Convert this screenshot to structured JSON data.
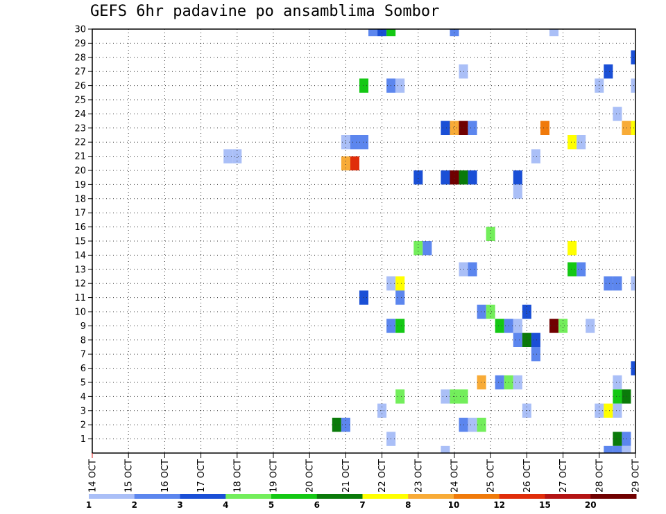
{
  "chart_data": {
    "type": "heatmap",
    "title": "GEFS 6hr padavine po ansamblima Sombor",
    "xlabel": "",
    "ylabel": "",
    "x_ticks": [
      "14 OCT",
      "15 OCT",
      "16 OCT",
      "17 OCT",
      "18 OCT",
      "19 OCT",
      "20 OCT",
      "21 OCT",
      "22 OCT",
      "23 OCT",
      "24 OCT",
      "25 OCT",
      "26 OCT",
      "27 OCT",
      "28 OCT",
      "29 OCT"
    ],
    "y_ticks": [
      "1",
      "2",
      "3",
      "4",
      "5",
      "6",
      "7",
      "8",
      "9",
      "10",
      "11",
      "12",
      "13",
      "14",
      "15",
      "16",
      "17",
      "18",
      "19",
      "20",
      "21",
      "22",
      "23",
      "24",
      "25",
      "26",
      "27",
      "28",
      "29",
      "30"
    ],
    "xlim": [
      0,
      15
    ],
    "ylim": [
      0,
      30
    ],
    "grid": true,
    "colorbar": {
      "labels": [
        "1",
        "2",
        "3",
        "4",
        "5",
        "6",
        "7",
        "8",
        "10",
        "12",
        "15",
        "20"
      ],
      "colors": [
        "#aabff7",
        "#5c86ee",
        "#1a4fd6",
        "#73ee5b",
        "#14c814",
        "#0a7a0a",
        "#ffff00",
        "#f8ab37",
        "#f07a0a",
        "#e02d0a",
        "#b41414",
        "#700000"
      ]
    },
    "cells": [
      {
        "x": 7.75,
        "y": 30,
        "v": 2
      },
      {
        "x": 8.0,
        "y": 30,
        "v": 3
      },
      {
        "x": 8.25,
        "y": 30,
        "v": 5
      },
      {
        "x": 10.0,
        "y": 30,
        "v": 2
      },
      {
        "x": 12.75,
        "y": 30,
        "v": 1
      },
      {
        "x": 15.0,
        "y": 28,
        "v": 3
      },
      {
        "x": 14.25,
        "y": 27,
        "v": 3
      },
      {
        "x": 10.25,
        "y": 27,
        "v": 1
      },
      {
        "x": 7.5,
        "y": 26,
        "v": 5
      },
      {
        "x": 8.25,
        "y": 26,
        "v": 2
      },
      {
        "x": 8.5,
        "y": 26,
        "v": 1
      },
      {
        "x": 14.0,
        "y": 26,
        "v": 1
      },
      {
        "x": 15.0,
        "y": 26,
        "v": 1
      },
      {
        "x": 14.5,
        "y": 24,
        "v": 1
      },
      {
        "x": 9.75,
        "y": 23,
        "v": 3
      },
      {
        "x": 10.0,
        "y": 23,
        "v": 8
      },
      {
        "x": 10.25,
        "y": 23,
        "v": 20
      },
      {
        "x": 10.5,
        "y": 23,
        "v": 2
      },
      {
        "x": 12.5,
        "y": 23,
        "v": 10
      },
      {
        "x": 14.75,
        "y": 23,
        "v": 8
      },
      {
        "x": 15.0,
        "y": 23,
        "v": 7
      },
      {
        "x": 7.0,
        "y": 22,
        "v": 1
      },
      {
        "x": 7.25,
        "y": 22,
        "v": 2
      },
      {
        "x": 7.5,
        "y": 22,
        "v": 2
      },
      {
        "x": 13.25,
        "y": 22,
        "v": 7
      },
      {
        "x": 13.5,
        "y": 22,
        "v": 1
      },
      {
        "x": 3.75,
        "y": 21,
        "v": 1
      },
      {
        "x": 4.0,
        "y": 21,
        "v": 1
      },
      {
        "x": 12.25,
        "y": 21,
        "v": 1
      },
      {
        "x": 7.0,
        "y": 20.5,
        "v": 8
      },
      {
        "x": 7.25,
        "y": 20.5,
        "v": 12
      },
      {
        "x": 9.0,
        "y": 19.5,
        "v": 3
      },
      {
        "x": 9.75,
        "y": 19.5,
        "v": 3
      },
      {
        "x": 10.0,
        "y": 19.5,
        "v": 20
      },
      {
        "x": 10.25,
        "y": 19.5,
        "v": 6
      },
      {
        "x": 10.5,
        "y": 19.5,
        "v": 3
      },
      {
        "x": 11.75,
        "y": 19.5,
        "v": 3
      },
      {
        "x": 11.75,
        "y": 18.5,
        "v": 1
      },
      {
        "x": 11.0,
        "y": 15.5,
        "v": 4
      },
      {
        "x": 9.0,
        "y": 14.5,
        "v": 4
      },
      {
        "x": 9.25,
        "y": 14.5,
        "v": 2
      },
      {
        "x": 13.25,
        "y": 14.5,
        "v": 7
      },
      {
        "x": 10.25,
        "y": 13,
        "v": 1
      },
      {
        "x": 10.5,
        "y": 13,
        "v": 2
      },
      {
        "x": 13.25,
        "y": 13,
        "v": 5
      },
      {
        "x": 13.5,
        "y": 13,
        "v": 2
      },
      {
        "x": 8.25,
        "y": 12,
        "v": 1
      },
      {
        "x": 8.5,
        "y": 12,
        "v": 7
      },
      {
        "x": 14.25,
        "y": 12,
        "v": 2
      },
      {
        "x": 14.5,
        "y": 12,
        "v": 2
      },
      {
        "x": 15.0,
        "y": 12,
        "v": 1
      },
      {
        "x": 7.5,
        "y": 11,
        "v": 3
      },
      {
        "x": 8.5,
        "y": 11,
        "v": 2
      },
      {
        "x": 10.75,
        "y": 10,
        "v": 2
      },
      {
        "x": 11.0,
        "y": 10,
        "v": 4
      },
      {
        "x": 12.0,
        "y": 10,
        "v": 3
      },
      {
        "x": 8.25,
        "y": 9,
        "v": 2
      },
      {
        "x": 8.5,
        "y": 9,
        "v": 5
      },
      {
        "x": 11.25,
        "y": 9,
        "v": 5
      },
      {
        "x": 11.5,
        "y": 9,
        "v": 2
      },
      {
        "x": 11.75,
        "y": 9,
        "v": 1
      },
      {
        "x": 12.75,
        "y": 9,
        "v": 20
      },
      {
        "x": 13.0,
        "y": 9,
        "v": 4
      },
      {
        "x": 13.75,
        "y": 9,
        "v": 1
      },
      {
        "x": 11.75,
        "y": 8,
        "v": 2
      },
      {
        "x": 12.0,
        "y": 8,
        "v": 6
      },
      {
        "x": 12.25,
        "y": 8,
        "v": 3
      },
      {
        "x": 12.25,
        "y": 7,
        "v": 2
      },
      {
        "x": 15.0,
        "y": 6,
        "v": 3
      },
      {
        "x": 10.75,
        "y": 5,
        "v": 8
      },
      {
        "x": 11.25,
        "y": 5,
        "v": 2
      },
      {
        "x": 11.5,
        "y": 5,
        "v": 4
      },
      {
        "x": 11.75,
        "y": 5,
        "v": 1
      },
      {
        "x": 14.5,
        "y": 5,
        "v": 1
      },
      {
        "x": 8.5,
        "y": 4,
        "v": 4
      },
      {
        "x": 9.75,
        "y": 4,
        "v": 1
      },
      {
        "x": 10.0,
        "y": 4,
        "v": 4
      },
      {
        "x": 10.25,
        "y": 4,
        "v": 4
      },
      {
        "x": 14.5,
        "y": 4,
        "v": 5
      },
      {
        "x": 14.75,
        "y": 4,
        "v": 6
      },
      {
        "x": 8.0,
        "y": 3,
        "v": 1
      },
      {
        "x": 12.0,
        "y": 3,
        "v": 1
      },
      {
        "x": 14.0,
        "y": 3,
        "v": 1
      },
      {
        "x": 14.25,
        "y": 3,
        "v": 7
      },
      {
        "x": 14.5,
        "y": 3,
        "v": 1
      },
      {
        "x": 6.75,
        "y": 2,
        "v": 6
      },
      {
        "x": 7.0,
        "y": 2,
        "v": 2
      },
      {
        "x": 10.25,
        "y": 2,
        "v": 2
      },
      {
        "x": 10.5,
        "y": 2,
        "v": 1
      },
      {
        "x": 10.75,
        "y": 2,
        "v": 4
      },
      {
        "x": 8.25,
        "y": 1,
        "v": 1
      },
      {
        "x": 14.5,
        "y": 1,
        "v": 6
      },
      {
        "x": 14.75,
        "y": 1,
        "v": 2
      },
      {
        "x": 9.75,
        "y": 0,
        "v": 1
      },
      {
        "x": 14.25,
        "y": 0,
        "v": 2
      },
      {
        "x": 14.5,
        "y": 0,
        "v": 2
      },
      {
        "x": 14.75,
        "y": 0,
        "v": 1
      }
    ]
  }
}
